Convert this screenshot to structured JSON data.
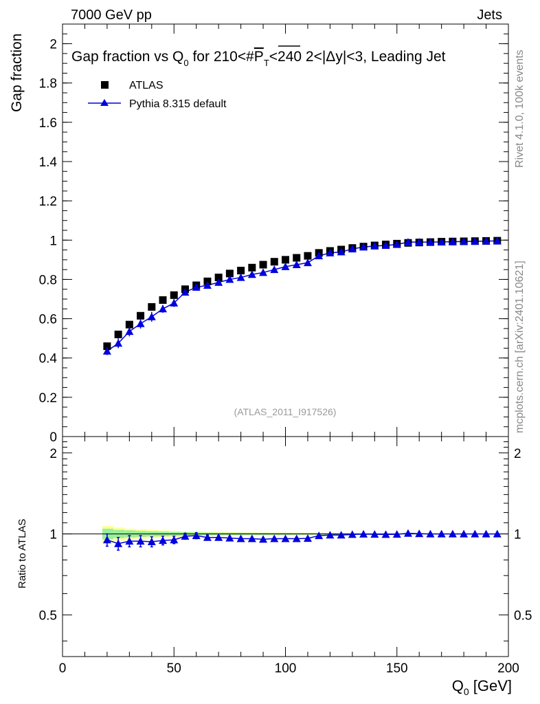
{
  "header": {
    "left": "7000 GeV pp",
    "right": "Jets"
  },
  "side_labels": {
    "rivet": "Rivet 4.1.0,  100k events",
    "mcplots": "mcplots.cern.ch [arXiv:2401.10621]"
  },
  "watermark": "(ATLAS_2011_I917526)",
  "chart_data": {
    "type": "scatter",
    "title": "Gap fraction vs Q0 for 210<#PT<240  2<|Δy|<3, Leading Jet",
    "title_parts": {
      "a": "Gap fraction vs Q",
      "sub0": "0",
      "b": " for 210<#",
      "p": "P",
      "sub1": "T",
      "c": "<240  2<|Δy|<3, Leading Jet"
    },
    "xlabel_main": "Q",
    "xlabel_sub": "0",
    "xlabel_unit": " [GeV]",
    "ylabel": "Gap fraction",
    "ratio_ylabel": "Ratio to ATLAS",
    "xlim": [
      0,
      200
    ],
    "ylim": [
      0,
      2.1
    ],
    "ratio_ylim": [
      0.35,
      2.3
    ],
    "x_ticks": [
      "0",
      "50",
      "100",
      "150",
      "200"
    ],
    "y_ticks": [
      "0",
      "0.2",
      "0.4",
      "0.6",
      "0.8",
      "1",
      "1.2",
      "1.4",
      "1.6",
      "1.8",
      "2"
    ],
    "ratio_ticks": [
      "0.5",
      "1",
      "2"
    ],
    "legend": {
      "data": "ATLAS",
      "mc": "Pythia 8.315 default"
    },
    "x": [
      20,
      25,
      30,
      35,
      40,
      45,
      50,
      55,
      60,
      65,
      70,
      75,
      80,
      85,
      90,
      95,
      100,
      105,
      110,
      115,
      120,
      125,
      130,
      135,
      140,
      145,
      150,
      155,
      160,
      165,
      170,
      175,
      180,
      185,
      190,
      195
    ],
    "series": [
      {
        "name": "ATLAS",
        "values": [
          0.46,
          0.52,
          0.57,
          0.615,
          0.66,
          0.695,
          0.72,
          0.75,
          0.77,
          0.79,
          0.81,
          0.83,
          0.845,
          0.86,
          0.875,
          0.89,
          0.9,
          0.91,
          0.92,
          0.935,
          0.945,
          0.952,
          0.96,
          0.967,
          0.973,
          0.978,
          0.982,
          0.986,
          0.988,
          0.99,
          0.992,
          0.993,
          0.994,
          0.995,
          0.996,
          0.997
        ]
      },
      {
        "name": "Pythia 8.315 default",
        "values": [
          0.435,
          0.475,
          0.535,
          0.575,
          0.61,
          0.65,
          0.68,
          0.735,
          0.76,
          0.77,
          0.785,
          0.8,
          0.81,
          0.825,
          0.835,
          0.85,
          0.865,
          0.875,
          0.885,
          0.92,
          0.935,
          0.94,
          0.955,
          0.965,
          0.97,
          0.973,
          0.978,
          0.99,
          0.99,
          0.99,
          0.991,
          0.992,
          0.993,
          0.994,
          0.995,
          0.996
        ],
        "errors": [
          0.02,
          0.025,
          0.025,
          0.025,
          0.025,
          0.02,
          0.02,
          0.015,
          0.015,
          0.015,
          0.012,
          0.012,
          0.01,
          0.01,
          0.01,
          0.01,
          0.01,
          0.008,
          0.008,
          0.008,
          0.008,
          0.006,
          0.005,
          0.005,
          0.005,
          0.005,
          0.004,
          0.004,
          0.004,
          0.004,
          0.004,
          0.003,
          0.003,
          0.003,
          0.003,
          0.003
        ]
      }
    ],
    "ratio_values": [
      0.95,
      0.92,
      0.94,
      0.94,
      0.935,
      0.945,
      0.95,
      0.98,
      0.985,
      0.97,
      0.97,
      0.965,
      0.96,
      0.96,
      0.955,
      0.96,
      0.96,
      0.96,
      0.962,
      0.985,
      0.99,
      0.99,
      0.995,
      0.998,
      0.997,
      0.995,
      0.997,
      1.005,
      1.002,
      1.0,
      1.0,
      1.0,
      1.0,
      1.0,
      1.0,
      1.0
    ],
    "ratio_errors": [
      0.05,
      0.05,
      0.045,
      0.045,
      0.04,
      0.035,
      0.03,
      0.025,
      0.025,
      0.02,
      0.015,
      0.015,
      0.012,
      0.012,
      0.012,
      0.012,
      0.01,
      0.01,
      0.01,
      0.01,
      0.008,
      0.007,
      0.006,
      0.006,
      0.006,
      0.005,
      0.005,
      0.005,
      0.005,
      0.005,
      0.005,
      0.004,
      0.004,
      0.004,
      0.004,
      0.004
    ],
    "band_yellow": [
      0.07,
      0.055,
      0.045,
      0.04,
      0.035,
      0.03,
      0.025,
      0.022,
      0.02,
      0.018,
      0.016,
      0.015,
      0.014,
      0.013,
      0.012,
      0.012,
      0.011,
      0.011,
      0.01,
      0.009,
      0.008,
      0.007,
      0.006,
      0.006,
      0.005,
      0.005,
      0.005,
      0.004,
      0.004,
      0.004,
      0.004,
      0.004,
      0.003,
      0.003,
      0.003,
      0.003
    ],
    "band_green": [
      0.045,
      0.035,
      0.03,
      0.025,
      0.022,
      0.02,
      0.017,
      0.015,
      0.013,
      0.012,
      0.011,
      0.01,
      0.01,
      0.009,
      0.009,
      0.008,
      0.008,
      0.007,
      0.007,
      0.006,
      0.006,
      0.005,
      0.005,
      0.004,
      0.004,
      0.004,
      0.003,
      0.003,
      0.003,
      0.003,
      0.003,
      0.003,
      0.002,
      0.002,
      0.002,
      0.002
    ],
    "colors": {
      "data": "#000000",
      "mc": "#0000dd",
      "band_yellow": "#ffff99",
      "band_green": "#99ee99"
    }
  }
}
